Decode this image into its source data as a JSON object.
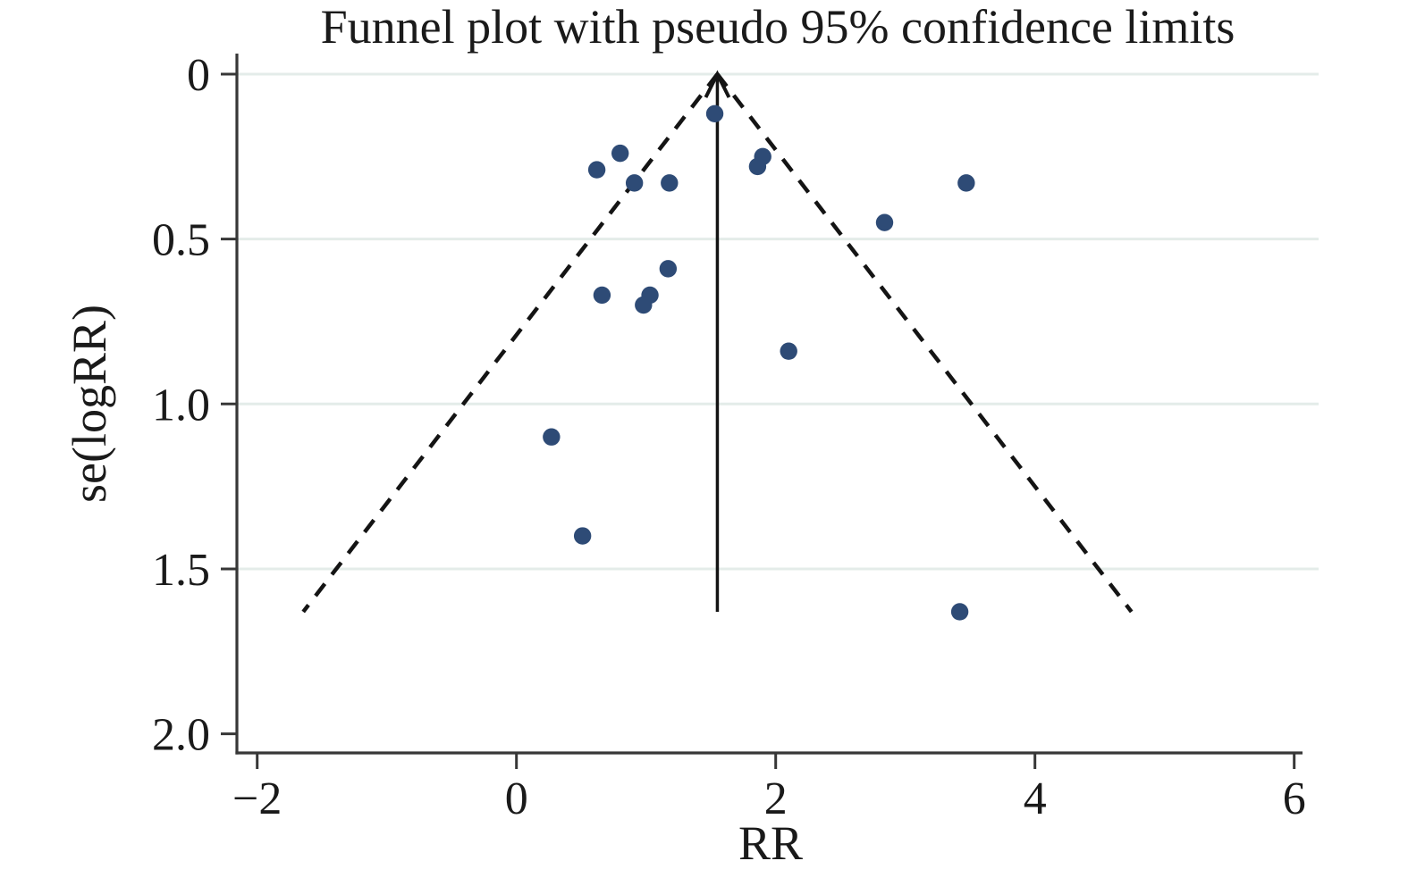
{
  "page": {
    "background_color": "#ffffff"
  },
  "chart_data": {
    "type": "scatter",
    "variant": "funnel-plot",
    "title": "Funnel plot with pseudo 95% confidence limits",
    "xlabel": "RR",
    "ylabel": "se(logRR)",
    "x_ticks": [
      -2,
      0,
      2,
      4,
      6
    ],
    "x_tick_labels": [
      "−2",
      "0",
      "2",
      "4",
      "6"
    ],
    "y_ticks": [
      0,
      0.5,
      1.0,
      1.5,
      2.0
    ],
    "y_tick_labels": [
      "0",
      "0.5",
      "1.0",
      "1.5",
      "2.0"
    ],
    "xlim": [
      -2.16,
      6.19
    ],
    "ylim": [
      0,
      2.06
    ],
    "y_axis_inverted": true,
    "grid": "horizontal-only",
    "legend": "none",
    "points": [
      {
        "rr": 1.53,
        "se": 0.12
      },
      {
        "rr": 0.8,
        "se": 0.24
      },
      {
        "rr": 1.9,
        "se": 0.25
      },
      {
        "rr": 1.86,
        "se": 0.28
      },
      {
        "rr": 0.62,
        "se": 0.29
      },
      {
        "rr": 0.91,
        "se": 0.33
      },
      {
        "rr": 1.18,
        "se": 0.33
      },
      {
        "rr": 3.47,
        "se": 0.33
      },
      {
        "rr": 2.84,
        "se": 0.45
      },
      {
        "rr": 1.17,
        "se": 0.59
      },
      {
        "rr": 1.03,
        "se": 0.67
      },
      {
        "rr": 0.66,
        "se": 0.67
      },
      {
        "rr": 0.98,
        "se": 0.7
      },
      {
        "rr": 2.1,
        "se": 0.84
      },
      {
        "rr": 0.27,
        "se": 1.1
      },
      {
        "rr": 0.51,
        "se": 1.4
      },
      {
        "rr": 3.42,
        "se": 1.63
      }
    ],
    "pooled_rr": 1.55,
    "ci_multiplier": 1.96,
    "funnel_se_max": 1.63,
    "pseudo_ci_lines": {
      "left_end": {
        "rr": -1.64,
        "se": 1.63
      },
      "apex": {
        "rr": 1.55,
        "se": 0
      },
      "right_end": {
        "rr": 4.74,
        "se": 1.63
      }
    },
    "colors": {
      "point": "#2e4b76",
      "axis": "#373737",
      "grid": "#e4ece9",
      "line": "#141414",
      "background": "#ffffff"
    }
  }
}
